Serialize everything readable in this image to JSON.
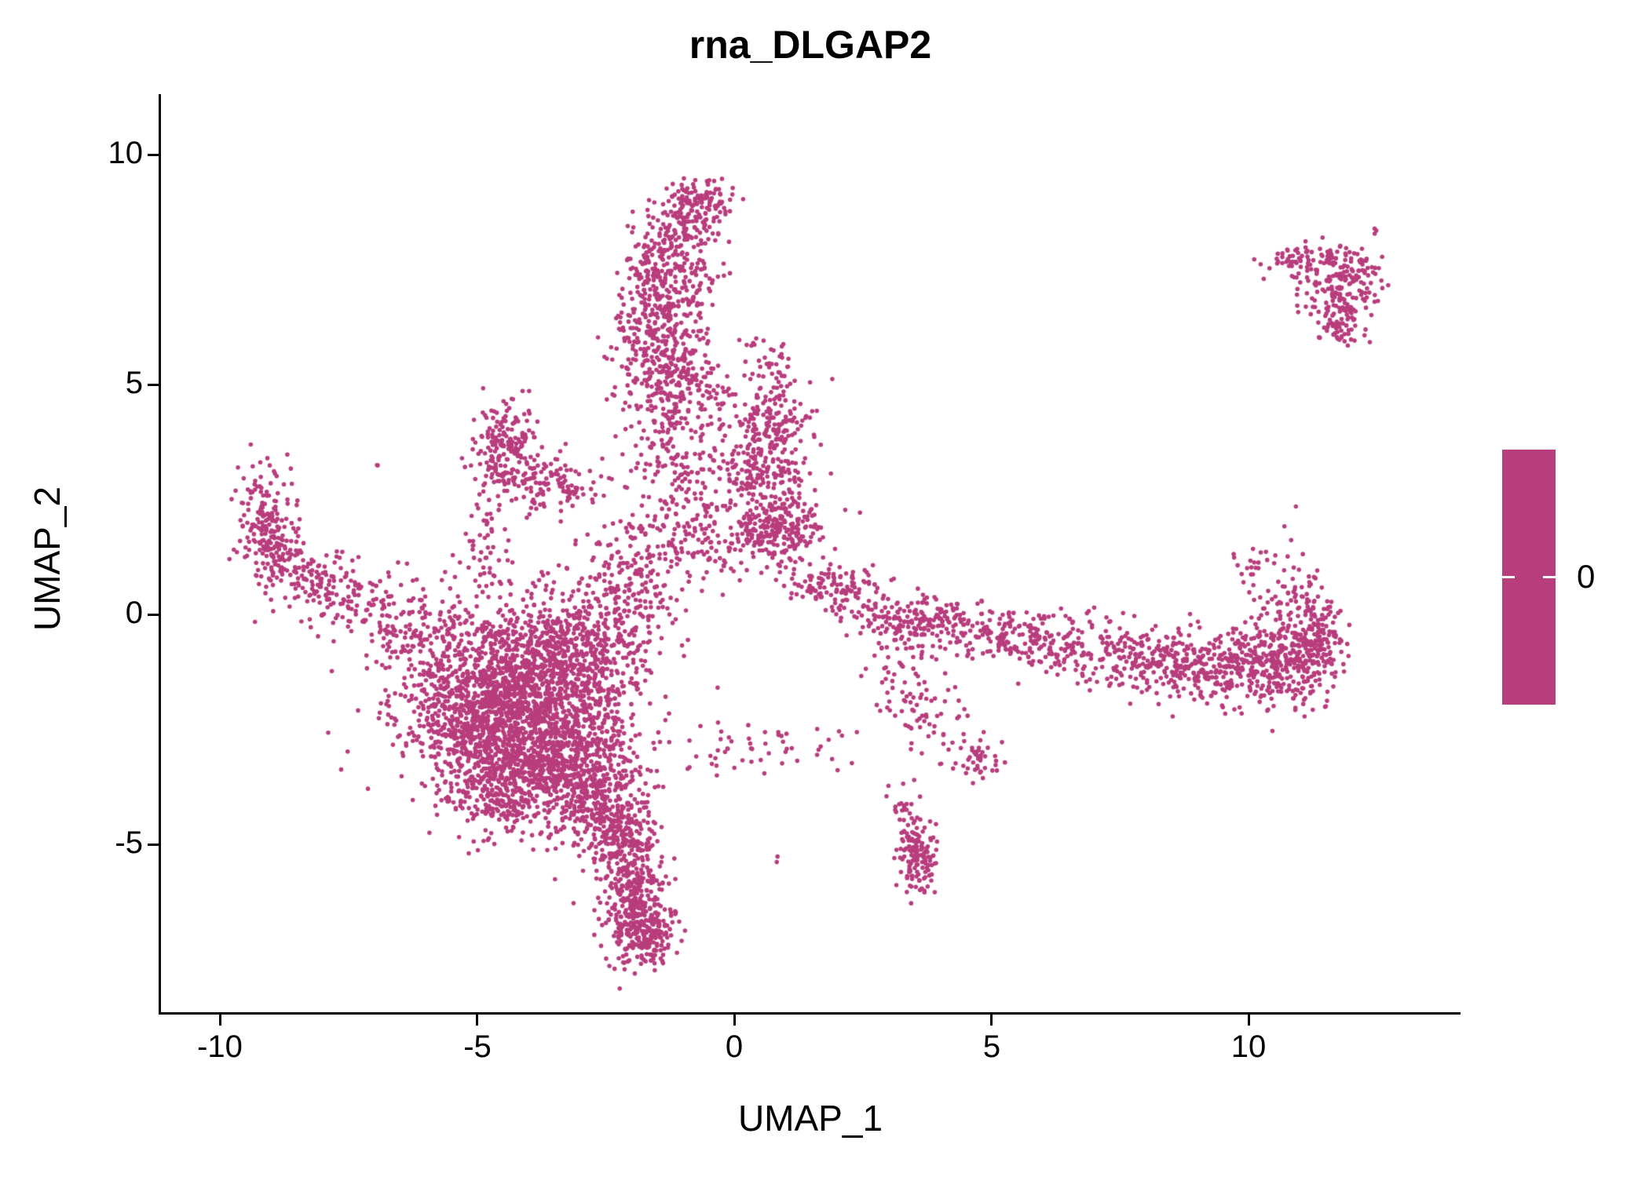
{
  "title": "rna_DLGAP2",
  "axes": {
    "xlabel": "UMAP_1",
    "ylabel": "UMAP_2",
    "x_tick_labels": [
      "-10",
      "-5",
      "0",
      "5",
      "10"
    ],
    "y_tick_labels": [
      "10",
      "5",
      "0",
      "-5"
    ]
  },
  "legend": {
    "label": "0",
    "colorbar_color": "#B83D7D"
  },
  "chart_data": {
    "type": "scatter",
    "title": "rna_DLGAP2",
    "xlabel": "UMAP_1",
    "ylabel": "UMAP_2",
    "xlim": [
      -11.15,
      14.12
    ],
    "ylim": [
      -8.65,
      11.32
    ],
    "x_ticks": [
      -10,
      -5,
      0,
      5,
      10
    ],
    "y_ticks": [
      -5,
      0,
      5,
      10
    ],
    "grid": false,
    "legend_position": "right",
    "colorbar": {
      "label": "0",
      "color": "#B83D7D"
    },
    "point_color": "#B83D7D",
    "point_radius_px": 2.8,
    "seed": 20240607,
    "clusters": [
      {
        "cx": -4.3,
        "cy": -1.6,
        "sdx": 1.05,
        "sdy": 0.95,
        "n": 1300
      },
      {
        "cx": -3.6,
        "cy": -3.1,
        "sdx": 0.75,
        "sdy": 0.75,
        "n": 800
      },
      {
        "cx": -5.1,
        "cy": -2.3,
        "sdx": 0.65,
        "sdy": 0.8,
        "n": 450
      },
      {
        "cx": -3.0,
        "cy": -0.6,
        "sdx": 0.8,
        "sdy": 0.7,
        "n": 430
      },
      {
        "cx": -2.6,
        "cy": -4.0,
        "sdx": 0.45,
        "sdy": 0.5,
        "n": 240
      },
      {
        "cx": -4.6,
        "cy": -3.9,
        "sdx": 0.5,
        "sdy": 0.45,
        "n": 200
      },
      {
        "cx": -2.2,
        "cy": -4.9,
        "sdx": 0.35,
        "sdy": 0.45,
        "n": 190
      },
      {
        "cx": -1.95,
        "cy": -5.9,
        "sdx": 0.3,
        "sdy": 0.5,
        "n": 200
      },
      {
        "cx": -1.8,
        "cy": -6.9,
        "sdx": 0.32,
        "sdy": 0.4,
        "n": 250
      },
      {
        "cx": -9.2,
        "cy": 2.2,
        "sdx": 0.25,
        "sdy": 0.55,
        "n": 110
      },
      {
        "cx": -8.9,
        "cy": 1.4,
        "sdx": 0.3,
        "sdy": 0.4,
        "n": 110
      },
      {
        "cx": -8.2,
        "cy": 0.8,
        "sdx": 0.45,
        "sdy": 0.4,
        "n": 110
      },
      {
        "cx": -7.2,
        "cy": 0.2,
        "sdx": 0.55,
        "sdy": 0.35,
        "n": 90
      },
      {
        "cx": -6.2,
        "cy": -0.4,
        "sdx": 0.55,
        "sdy": 0.45,
        "n": 90
      },
      {
        "cx": -4.45,
        "cy": 3.7,
        "sdx": 0.3,
        "sdy": 0.45,
        "n": 160
      },
      {
        "cx": -3.9,
        "cy": 3.0,
        "sdx": 0.45,
        "sdy": 0.35,
        "n": 90
      },
      {
        "cx": -3.25,
        "cy": 2.8,
        "sdx": 0.3,
        "sdy": 0.22,
        "n": 45
      },
      {
        "cx": -4.8,
        "cy": 1.7,
        "sdx": 0.2,
        "sdy": 0.7,
        "n": 60
      },
      {
        "cx": -0.65,
        "cy": 9.0,
        "sdx": 0.3,
        "sdy": 0.25,
        "n": 100
      },
      {
        "cx": -1.1,
        "cy": 8.3,
        "sdx": 0.4,
        "sdy": 0.35,
        "n": 130
      },
      {
        "cx": -1.3,
        "cy": 7.3,
        "sdx": 0.45,
        "sdy": 0.5,
        "n": 200
      },
      {
        "cx": -1.4,
        "cy": 6.2,
        "sdx": 0.5,
        "sdy": 0.6,
        "n": 220
      },
      {
        "cx": -1.3,
        "cy": 5.2,
        "sdx": 0.5,
        "sdy": 0.5,
        "n": 150
      },
      {
        "cx": -1.0,
        "cy": 4.3,
        "sdx": 0.55,
        "sdy": 0.6,
        "n": 120
      },
      {
        "cx": -1.3,
        "cy": 3.0,
        "sdx": 0.55,
        "sdy": 0.7,
        "n": 100
      },
      {
        "cx": -0.9,
        "cy": 1.7,
        "sdx": 0.8,
        "sdy": 0.55,
        "n": 150
      },
      {
        "cx": 0.75,
        "cy": 4.1,
        "sdx": 0.4,
        "sdy": 0.5,
        "n": 170
      },
      {
        "cx": 0.45,
        "cy": 3.2,
        "sdx": 0.45,
        "sdy": 0.4,
        "n": 90
      },
      {
        "cx": 0.9,
        "cy": 1.9,
        "sdx": 0.45,
        "sdy": 0.4,
        "n": 260
      },
      {
        "cx": 0.6,
        "cy": 5.5,
        "sdx": 0.25,
        "sdy": 0.3,
        "n": 40
      },
      {
        "cx": 0.2,
        "cy": 2.6,
        "sdx": 0.5,
        "sdy": 0.4,
        "n": 60
      },
      {
        "cx": 2.2,
        "cy": 0.45,
        "sdx": 0.45,
        "sdy": 0.3,
        "n": 90
      },
      {
        "cx": 3.2,
        "cy": -0.1,
        "sdx": 0.5,
        "sdy": 0.3,
        "n": 110
      },
      {
        "cx": 4.3,
        "cy": -0.3,
        "sdx": 0.6,
        "sdy": 0.3,
        "n": 130
      },
      {
        "cx": 5.5,
        "cy": -0.5,
        "sdx": 0.6,
        "sdy": 0.3,
        "n": 110
      },
      {
        "cx": 6.8,
        "cy": -0.7,
        "sdx": 0.7,
        "sdy": 0.35,
        "n": 130
      },
      {
        "cx": 8.2,
        "cy": -1.0,
        "sdx": 0.7,
        "sdy": 0.4,
        "n": 190
      },
      {
        "cx": 9.5,
        "cy": -1.1,
        "sdx": 0.6,
        "sdy": 0.4,
        "n": 210
      },
      {
        "cx": 10.6,
        "cy": -1.0,
        "sdx": 0.5,
        "sdy": 0.5,
        "n": 260
      },
      {
        "cx": 11.3,
        "cy": -0.7,
        "sdx": 0.25,
        "sdy": 0.6,
        "n": 160
      },
      {
        "cx": 10.9,
        "cy": 0.4,
        "sdx": 0.35,
        "sdy": 0.45,
        "n": 70
      },
      {
        "cx": 10.1,
        "cy": 1.1,
        "sdx": 0.2,
        "sdy": 0.3,
        "n": 20
      },
      {
        "cx": 11.5,
        "cy": 7.7,
        "sdx": 0.55,
        "sdy": 0.2,
        "n": 90
      },
      {
        "cx": 11.9,
        "cy": 7.1,
        "sdx": 0.4,
        "sdy": 0.35,
        "n": 130
      },
      {
        "cx": 11.75,
        "cy": 6.4,
        "sdx": 0.2,
        "sdy": 0.3,
        "n": 70
      },
      {
        "cx": 10.75,
        "cy": 7.75,
        "sdx": 0.15,
        "sdy": 0.12,
        "n": 12
      },
      {
        "cx": 12.4,
        "cy": 8.35,
        "sdx": 0.06,
        "sdy": 0.06,
        "n": 3
      },
      {
        "cx": 3.2,
        "cy": -1.4,
        "sdx": 0.35,
        "sdy": 0.5,
        "n": 45
      },
      {
        "cx": 3.8,
        "cy": -2.4,
        "sdx": 0.35,
        "sdy": 0.4,
        "n": 45
      },
      {
        "cx": 4.7,
        "cy": -3.1,
        "sdx": 0.3,
        "sdy": 0.25,
        "n": 45
      },
      {
        "cx": 3.55,
        "cy": -5.25,
        "sdx": 0.18,
        "sdy": 0.4,
        "n": 130
      },
      {
        "cx": 3.3,
        "cy": -4.3,
        "sdx": 0.2,
        "sdy": 0.35,
        "n": 25
      },
      {
        "cx": 0.4,
        "cy": -2.9,
        "sdx": 1.0,
        "sdy": 0.3,
        "n": 55
      },
      {
        "cx": -2.1,
        "cy": 0.6,
        "sdx": 0.5,
        "sdy": 0.55,
        "n": 130
      },
      {
        "cx": 1.55,
        "cy": 0.7,
        "sdx": 0.25,
        "sdy": 0.2,
        "n": 30
      },
      {
        "cx": -6.9,
        "cy": 3.25,
        "sdx": 0.05,
        "sdy": 0.05,
        "n": 2
      },
      {
        "cx": 0.8,
        "cy": -5.3,
        "sdx": 0.05,
        "sdy": 0.05,
        "n": 2
      }
    ]
  }
}
